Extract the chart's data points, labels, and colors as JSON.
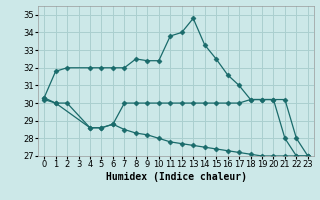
{
  "xlabel": "Humidex (Indice chaleur)",
  "background_color": "#cce8e8",
  "grid_color": "#aacfcf",
  "line_color": "#1a6b6b",
  "xlim": [
    -0.5,
    23.5
  ],
  "ylim": [
    27,
    35.5
  ],
  "xticks": [
    0,
    1,
    2,
    3,
    4,
    5,
    6,
    7,
    8,
    9,
    10,
    11,
    12,
    13,
    14,
    15,
    16,
    17,
    18,
    19,
    20,
    21,
    22,
    23
  ],
  "yticks": [
    27,
    28,
    29,
    30,
    31,
    32,
    33,
    34,
    35
  ],
  "line1_x": [
    0,
    1,
    2,
    4,
    5,
    6,
    7,
    8,
    9,
    10,
    11,
    12,
    13,
    14,
    15,
    16,
    17,
    18,
    19,
    20,
    21,
    22,
    23
  ],
  "line1_y": [
    30.3,
    31.8,
    32.0,
    32.0,
    32.0,
    32.0,
    32.0,
    32.5,
    32.4,
    32.4,
    33.8,
    34.0,
    34.8,
    33.3,
    32.5,
    31.6,
    31.0,
    30.2,
    30.2,
    30.2,
    28.0,
    27.0,
    27.0
  ],
  "line2_x": [
    0,
    1,
    4,
    5,
    6,
    7,
    8,
    9,
    10,
    11,
    12,
    13,
    14,
    15,
    16,
    17,
    18,
    19,
    20,
    21,
    22,
    23
  ],
  "line2_y": [
    30.2,
    30.0,
    28.6,
    28.6,
    28.8,
    30.0,
    30.0,
    30.0,
    30.0,
    30.0,
    30.0,
    30.0,
    30.0,
    30.0,
    30.0,
    30.0,
    30.2,
    30.2,
    30.2,
    30.2,
    28.0,
    27.0
  ],
  "line3_x": [
    0,
    1,
    2,
    4,
    5,
    6,
    7,
    8,
    9,
    10,
    11,
    12,
    13,
    14,
    15,
    16,
    17,
    18,
    19,
    20,
    21,
    22,
    23
  ],
  "line3_y": [
    30.3,
    30.0,
    30.0,
    28.6,
    28.6,
    28.8,
    28.5,
    28.3,
    28.2,
    28.0,
    27.8,
    27.7,
    27.6,
    27.5,
    27.4,
    27.3,
    27.2,
    27.1,
    27.0,
    27.0,
    27.0,
    27.0,
    27.0
  ],
  "tick_fontsize": 6,
  "xlabel_fontsize": 7
}
